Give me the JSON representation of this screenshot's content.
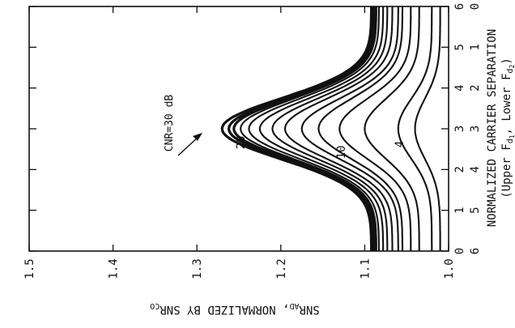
{
  "chart_data": {
    "type": "line",
    "orientation": "rotated-90-clockwise",
    "xlabel_lines": [
      "NORMALIZED CARRIER SEPARATION",
      "(Upper F",
      "d",
      "1",
      ", Lower F",
      "d",
      "2",
      ")"
    ],
    "ylabel_parts": [
      "SNR",
      "AD",
      ", NORMALIZED BY SNR",
      "CO"
    ],
    "x_upper_ticks": [
      "0",
      "1",
      "2",
      "3",
      "4",
      "5",
      "6"
    ],
    "x_lower_ticks": [
      "6",
      "5",
      "4",
      "3",
      "2",
      "1",
      "0"
    ],
    "xlim": [
      0,
      6
    ],
    "ylim": [
      1.0,
      1.5
    ],
    "y_ticks": [
      "1.0",
      "1.1",
      "1.2",
      "1.3",
      "1.4",
      "1.5"
    ],
    "curve_labels": [
      "CNR=30 dB",
      "20",
      "10",
      "4"
    ],
    "series": [
      {
        "name": "4",
        "peak_value": 1.04,
        "edge_value": 1.01
      },
      {
        "name": "",
        "peak_value": 1.06,
        "edge_value": 1.02
      },
      {
        "name": "10",
        "peak_value": 1.1,
        "edge_value": 1.035
      },
      {
        "name": "",
        "peak_value": 1.13,
        "edge_value": 1.045
      },
      {
        "name": "",
        "peak_value": 1.155,
        "edge_value": 1.055
      },
      {
        "name": "",
        "peak_value": 1.175,
        "edge_value": 1.06
      },
      {
        "name": "",
        "peak_value": 1.195,
        "edge_value": 1.067
      },
      {
        "name": "20",
        "peak_value": 1.21,
        "edge_value": 1.073
      },
      {
        "name": "",
        "peak_value": 1.225,
        "edge_value": 1.078
      },
      {
        "name": "",
        "peak_value": 1.238,
        "edge_value": 1.083
      },
      {
        "name": "",
        "peak_value": 1.248,
        "edge_value": 1.086
      },
      {
        "name": "",
        "peak_value": 1.256,
        "edge_value": 1.088
      },
      {
        "name": "",
        "peak_value": 1.262,
        "edge_value": 1.09
      },
      {
        "name": "CNR=30 dB",
        "peak_value": 1.27,
        "edge_value": 1.092
      }
    ],
    "peak_x": 3,
    "grid": false,
    "legend": "none"
  }
}
